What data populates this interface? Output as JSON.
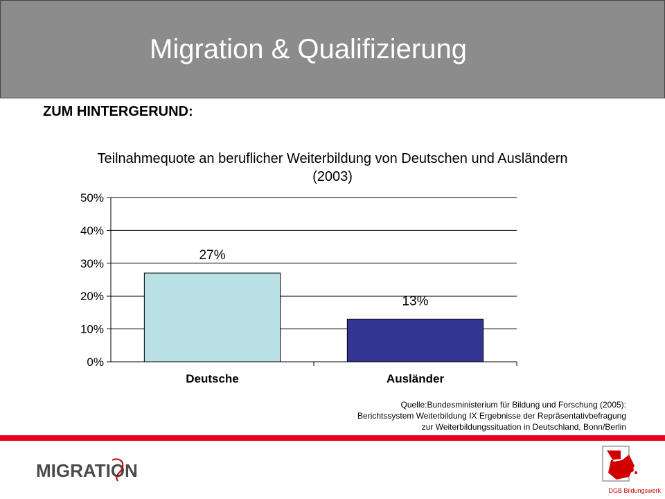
{
  "header": {
    "title": "Migration & Qualifizierung"
  },
  "section": {
    "heading": "ZUM HINTERGERUND:"
  },
  "chart_data": {
    "type": "bar",
    "title_line1": "Teilnahmequote an beruflicher Weiterbildung von Deutschen und Ausländern",
    "title_line2": "(2003)",
    "categories": [
      "Deutsche",
      "Ausländer"
    ],
    "values": [
      27,
      13
    ],
    "value_labels": [
      "27%",
      "13%"
    ],
    "ylim": [
      0,
      50
    ],
    "yticks": [
      0,
      10,
      20,
      30,
      40,
      50
    ],
    "ytick_labels": [
      "0%",
      "10%",
      "20%",
      "30%",
      "40%",
      "50%"
    ],
    "bar_colors": [
      "#b9e0e4",
      "#343494"
    ],
    "grid": true
  },
  "source": {
    "line1": "Quelle:Bundesministerium  für Bildung und Forschung (2005):",
    "line2": "Berichtssystem Weiterbildung IX Ergebnisse der Repräsentativbefragung",
    "line3": "zur Weiterbildungssituation in Deutschland, Bonn/Berlin"
  },
  "footer": {
    "logo_text": "MIGRATION",
    "org": "DGB Bildungswerk",
    "accent_color": "#e8001e"
  }
}
